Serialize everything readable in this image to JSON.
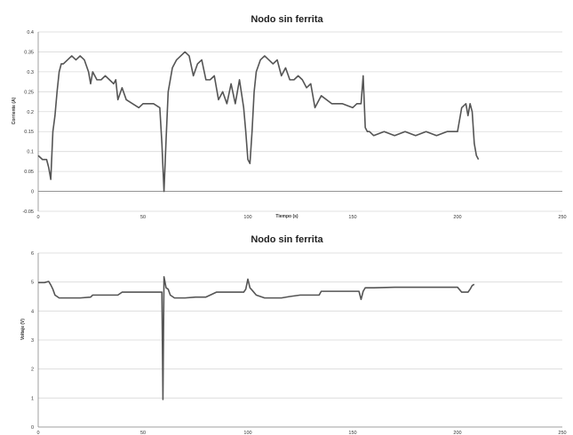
{
  "chart_data": [
    {
      "type": "line",
      "title": "Nodo sin ferrita",
      "xlabel": "Tiempo (s)",
      "ylabel": "Corriente (A)",
      "xlim": [
        0,
        250
      ],
      "ylim": [
        -0.05,
        0.4
      ],
      "x_ticks": [
        0,
        50,
        100,
        150,
        200,
        250
      ],
      "y_ticks": [
        -0.05,
        0,
        0.05,
        0.1,
        0.15,
        0.2,
        0.25,
        0.3,
        0.35,
        0.4
      ],
      "grid": true,
      "color": "#555555",
      "series": [
        {
          "x": [
            0,
            2,
            4,
            5,
            6,
            7,
            8,
            9,
            10,
            11,
            12,
            14,
            16,
            18,
            20,
            22,
            24,
            25,
            26,
            28,
            30,
            32,
            34,
            36,
            37,
            38,
            40,
            42,
            45,
            48,
            50,
            55,
            58,
            59,
            60,
            61,
            62,
            64,
            66,
            68,
            70,
            72,
            74,
            76,
            78,
            80,
            82,
            84,
            86,
            88,
            90,
            92,
            94,
            96,
            98,
            99,
            100,
            101,
            102,
            103,
            104,
            106,
            108,
            110,
            112,
            114,
            116,
            118,
            120,
            122,
            124,
            126,
            128,
            130,
            132,
            135,
            140,
            145,
            150,
            152,
            154,
            155,
            156,
            157,
            158,
            160,
            165,
            170,
            175,
            180,
            185,
            190,
            195,
            200,
            202,
            204,
            205,
            206,
            207,
            208,
            209,
            210
          ],
          "y": [
            0.09,
            0.08,
            0.08,
            0.06,
            0.03,
            0.15,
            0.19,
            0.25,
            0.3,
            0.32,
            0.32,
            0.33,
            0.34,
            0.33,
            0.34,
            0.33,
            0.3,
            0.27,
            0.3,
            0.28,
            0.28,
            0.29,
            0.28,
            0.27,
            0.28,
            0.23,
            0.26,
            0.23,
            0.22,
            0.21,
            0.22,
            0.22,
            0.21,
            0.12,
            0.0,
            0.13,
            0.25,
            0.31,
            0.33,
            0.34,
            0.35,
            0.34,
            0.29,
            0.32,
            0.33,
            0.28,
            0.28,
            0.29,
            0.23,
            0.25,
            0.22,
            0.27,
            0.22,
            0.28,
            0.21,
            0.15,
            0.08,
            0.07,
            0.15,
            0.25,
            0.3,
            0.33,
            0.34,
            0.33,
            0.32,
            0.33,
            0.29,
            0.31,
            0.28,
            0.28,
            0.29,
            0.28,
            0.26,
            0.27,
            0.21,
            0.24,
            0.22,
            0.22,
            0.21,
            0.22,
            0.22,
            0.29,
            0.16,
            0.15,
            0.15,
            0.14,
            0.15,
            0.14,
            0.15,
            0.14,
            0.15,
            0.14,
            0.15,
            0.15,
            0.21,
            0.22,
            0.19,
            0.22,
            0.2,
            0.12,
            0.09,
            0.08
          ]
        }
      ]
    },
    {
      "type": "line",
      "title": "Nodo sin ferrita",
      "xlabel": "",
      "ylabel": "Voltaje (V)",
      "xlim": [
        0,
        250
      ],
      "ylim": [
        0,
        6
      ],
      "x_ticks": [
        0,
        50,
        100,
        150,
        200,
        250
      ],
      "y_ticks": [
        0,
        1,
        2,
        3,
        4,
        5,
        6
      ],
      "grid": true,
      "color": "#555555",
      "series": [
        {
          "x": [
            0,
            3,
            5,
            6,
            7,
            8,
            10,
            15,
            20,
            25,
            26,
            30,
            35,
            38,
            40,
            45,
            50,
            55,
            58,
            59,
            59.5,
            60,
            61,
            62,
            63,
            65,
            70,
            75,
            80,
            85,
            90,
            98,
            99,
            100,
            101,
            102,
            104,
            108,
            112,
            116,
            120,
            125,
            130,
            134,
            135,
            140,
            145,
            150,
            153,
            154,
            155,
            156,
            157,
            160,
            170,
            180,
            190,
            200,
            202,
            203,
            205,
            206,
            207,
            208
          ],
          "y": [
            4.98,
            4.98,
            5.02,
            4.9,
            4.75,
            4.55,
            4.45,
            4.45,
            4.45,
            4.48,
            4.55,
            4.55,
            4.55,
            4.55,
            4.65,
            4.65,
            4.65,
            4.65,
            4.65,
            4.65,
            0.95,
            5.18,
            4.8,
            4.75,
            4.55,
            4.45,
            4.45,
            4.48,
            4.48,
            4.65,
            4.65,
            4.65,
            4.75,
            5.1,
            4.8,
            4.72,
            4.55,
            4.45,
            4.45,
            4.45,
            4.5,
            4.55,
            4.55,
            4.55,
            4.68,
            4.68,
            4.68,
            4.68,
            4.68,
            4.4,
            4.68,
            4.8,
            4.8,
            4.8,
            4.82,
            4.82,
            4.82,
            4.82,
            4.65,
            4.65,
            4.65,
            4.75,
            4.88,
            4.92
          ]
        }
      ]
    }
  ]
}
